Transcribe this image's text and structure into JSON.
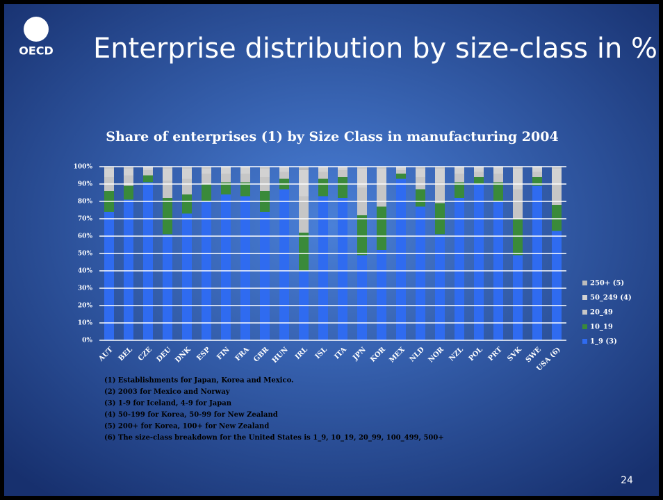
{
  "slide": {
    "logo": "OECD",
    "title": "Enterprise distribution by size-class in %",
    "page_number": "24",
    "footnotes": [
      "(1) Establishments for Japan, Korea and Mexico.",
      "(2) 2003 for Mexico and Norway",
      "(3) 1-9 for Iceland, 4-9 for Japan",
      "(4) 50-199 for Korea, 50-99 for New Zealand",
      "(5) 200+ for Korea, 100+ for New Zealand",
      "(6) The size-class breakdown for the United States is 1_9, 10_19, 20_99, 100_499, 500+"
    ]
  },
  "chart_data": {
    "type": "stacked_bar",
    "title": "Share of enterprises (1) by Size Class in manufacturing 2004",
    "categories": [
      "AUT",
      "BEL",
      "CZE",
      "DEU",
      "DNK",
      "ESP",
      "FIN",
      "FRA",
      "GBR",
      "HUN",
      "IRL",
      "ISL",
      "ITA",
      "JPN",
      "KOR",
      "MEX",
      "NLD",
      "NOR",
      "NZL",
      "POL",
      "PRT",
      "SVK",
      "SWE",
      "USA (6)"
    ],
    "series": [
      {
        "name": "1_9 (3)",
        "color": "#2f6bf0",
        "values": [
          74,
          81,
          91,
          61,
          73,
          80,
          84,
          83,
          74,
          87,
          40,
          83,
          82,
          49,
          52,
          93,
          77,
          61,
          82,
          90,
          80,
          49,
          89,
          63
        ]
      },
      {
        "name": "10_19",
        "color": "#3a8a3a",
        "values": [
          12,
          8,
          4,
          21,
          11,
          10,
          7,
          8,
          12,
          6,
          22,
          10,
          12,
          23,
          25,
          3,
          10,
          18,
          9,
          4,
          11,
          21,
          5,
          15
        ]
      },
      {
        "name": "20_49",
        "color": "#c6c6c6",
        "values": [
          8,
          6,
          3,
          10,
          9,
          6,
          5,
          5,
          8,
          4,
          21,
          4,
          4,
          16,
          13,
          2,
          7,
          12,
          5,
          3,
          5,
          17,
          3,
          12
        ]
      },
      {
        "name": "50_249 (4)",
        "color": "#d2d2d2",
        "values": [
          5,
          4,
          2,
          7,
          6,
          3,
          4,
          4,
          5,
          3,
          15,
          3,
          2,
          11,
          9,
          2,
          5,
          8,
          4,
          3,
          4,
          12,
          3,
          9
        ]
      },
      {
        "name": "250+ (5)",
        "color": "#bcbcbc",
        "values": [
          1,
          1,
          0,
          1,
          1,
          1,
          0,
          0,
          1,
          0,
          2,
          0,
          0,
          1,
          1,
          0,
          1,
          1,
          0,
          0,
          0,
          1,
          0,
          1
        ]
      }
    ],
    "ylim": [
      0,
      100
    ],
    "yticks": [
      {
        "value": 0,
        "label": "0%"
      },
      {
        "value": 10,
        "label": "10%"
      },
      {
        "value": 20,
        "label": "20%"
      },
      {
        "value": 30,
        "label": "30%"
      },
      {
        "value": 40,
        "label": "40%"
      },
      {
        "value": 50,
        "label": "50%"
      },
      {
        "value": 60,
        "label": "60%"
      },
      {
        "value": 70,
        "label": "70%"
      },
      {
        "value": 80,
        "label": "80%"
      },
      {
        "value": 90,
        "label": "90%"
      },
      {
        "value": 100,
        "label": "100%"
      }
    ],
    "grid": true,
    "legend": "right"
  }
}
